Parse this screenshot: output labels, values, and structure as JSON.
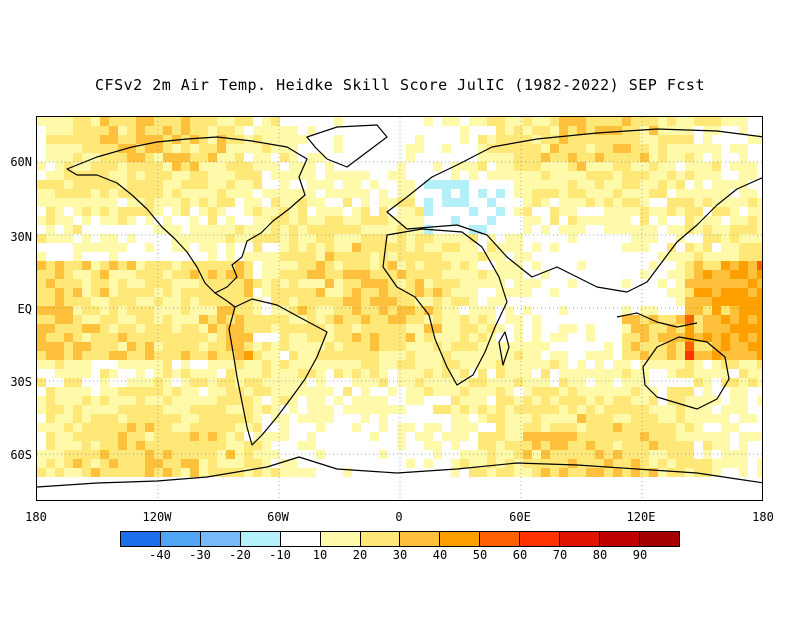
{
  "title": "CFSv2 2m Air Temp. Heidke Skill Score JulIC (1982-2022) SEP Fcst",
  "axes": {
    "lat_labels": [
      "60N",
      "30N",
      "EQ",
      "30S",
      "60S"
    ],
    "lon_labels": [
      "180",
      "120W",
      "60W",
      "0",
      "60E",
      "120E",
      "180"
    ]
  },
  "colorbar": {
    "colors": [
      "#1e6eeb",
      "#50a5f5",
      "#78b9fa",
      "#b4f0fa",
      "#ffffff",
      "#fffaaa",
      "#ffe878",
      "#ffc03c",
      "#ffa000",
      "#ff6000",
      "#ff3200",
      "#e11400",
      "#c00000",
      "#a50000"
    ],
    "labels": [
      "-40",
      "-30",
      "-20",
      "-10",
      "10",
      "20",
      "30",
      "40",
      "50",
      "60",
      "70",
      "80",
      "90"
    ]
  },
  "legend_colors": {
    "land_outline": "#000000",
    "grid": "#888888"
  }
}
